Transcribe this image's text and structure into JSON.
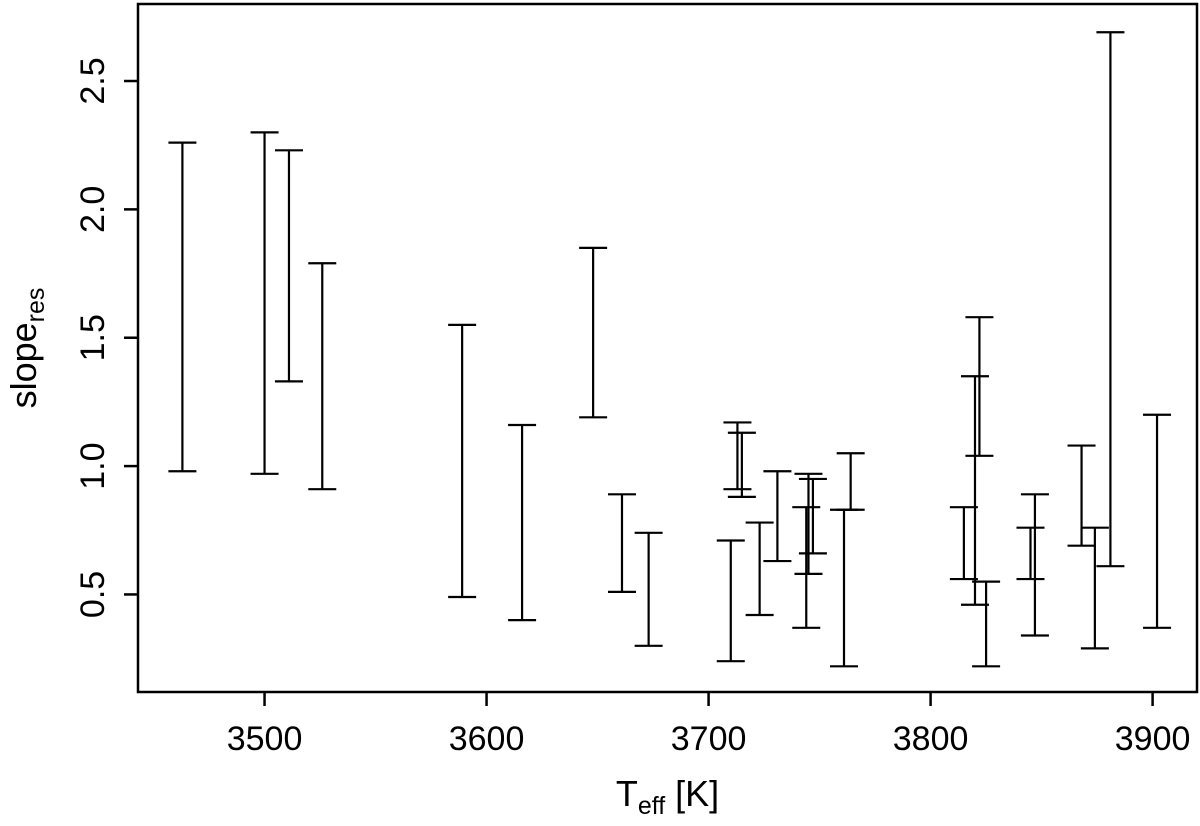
{
  "chart_data": {
    "type": "errorbar",
    "xlabel": {
      "main": "T",
      "sub": "eff",
      "suffix": " [K]"
    },
    "ylabel": {
      "main": "slope",
      "sub": "res"
    },
    "xlim": [
      3443,
      3920
    ],
    "ylim": [
      0.12,
      2.8
    ],
    "xticks": [
      3500,
      3600,
      3700,
      3800,
      3900
    ],
    "yticks": [
      0.5,
      1.0,
      1.5,
      2.0,
      2.5
    ],
    "ytick_labels": [
      "0.5",
      "1.0",
      "1.5",
      "2.0",
      "2.5"
    ],
    "grid": false,
    "bars": [
      {
        "x": 3463,
        "low": 0.98,
        "high": 2.26
      },
      {
        "x": 3500,
        "low": 0.97,
        "high": 2.3
      },
      {
        "x": 3511,
        "low": 1.33,
        "high": 2.23
      },
      {
        "x": 3526,
        "low": 0.91,
        "high": 1.79
      },
      {
        "x": 3589,
        "low": 0.49,
        "high": 1.55
      },
      {
        "x": 3616,
        "low": 0.4,
        "high": 1.16
      },
      {
        "x": 3648,
        "low": 1.19,
        "high": 1.85
      },
      {
        "x": 3661,
        "low": 0.51,
        "high": 0.89
      },
      {
        "x": 3673,
        "low": 0.3,
        "high": 0.74
      },
      {
        "x": 3710,
        "low": 0.24,
        "high": 0.71
      },
      {
        "x": 3713,
        "low": 0.91,
        "high": 1.17
      },
      {
        "x": 3715,
        "low": 0.88,
        "high": 1.13
      },
      {
        "x": 3723,
        "low": 0.42,
        "high": 0.78
      },
      {
        "x": 3731,
        "low": 0.63,
        "high": 0.98
      },
      {
        "x": 3744,
        "low": 0.37,
        "high": 0.84
      },
      {
        "x": 3745,
        "low": 0.58,
        "high": 0.97
      },
      {
        "x": 3747,
        "low": 0.66,
        "high": 0.95
      },
      {
        "x": 3761,
        "low": 0.22,
        "high": 0.83
      },
      {
        "x": 3764,
        "low": 0.83,
        "high": 1.05
      },
      {
        "x": 3815,
        "low": 0.56,
        "high": 0.84
      },
      {
        "x": 3820,
        "low": 0.46,
        "high": 1.35
      },
      {
        "x": 3822,
        "low": 1.04,
        "high": 1.58
      },
      {
        "x": 3825,
        "low": 0.22,
        "high": 0.55
      },
      {
        "x": 3845,
        "low": 0.56,
        "high": 0.76
      },
      {
        "x": 3847,
        "low": 0.34,
        "high": 0.89
      },
      {
        "x": 3868,
        "low": 0.69,
        "high": 1.08
      },
      {
        "x": 3874,
        "low": 0.29,
        "high": 0.76
      },
      {
        "x": 3881,
        "low": 0.61,
        "high": 2.69
      },
      {
        "x": 3902,
        "low": 0.37,
        "high": 1.2
      }
    ]
  }
}
